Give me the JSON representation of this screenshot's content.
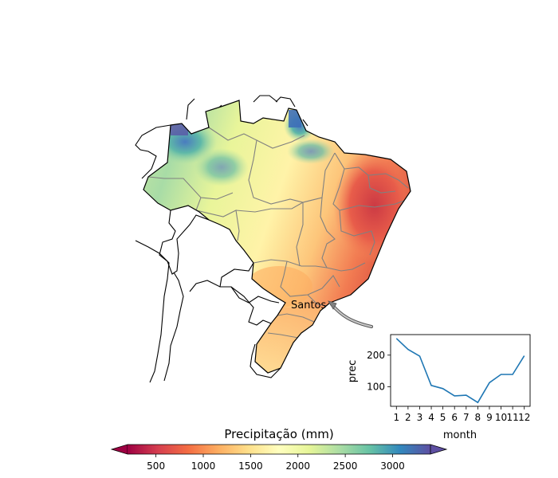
{
  "map": {
    "annotation": {
      "label": "Santos"
    }
  },
  "colorbar": {
    "title": "Precipitação (mm)",
    "ticks": [
      "500",
      "1000",
      "1500",
      "2000",
      "2500",
      "3000"
    ],
    "colormap": "Spectral",
    "colors": [
      "#9e0142",
      "#d53e4f",
      "#f46d43",
      "#fdae61",
      "#fee08b",
      "#ffffbf",
      "#e6f598",
      "#abdda4",
      "#66c2a5",
      "#3288bd",
      "#5e4fa2"
    ],
    "extend": "both"
  },
  "chart_data": {
    "type": "line",
    "x": [
      1,
      2,
      3,
      4,
      5,
      6,
      7,
      8,
      9,
      10,
      11,
      12
    ],
    "values": [
      253,
      218,
      197,
      104,
      94,
      71,
      73,
      50,
      113,
      139,
      139,
      198
    ],
    "xlabel": "month",
    "ylabel": "prec",
    "x_tick_labels": [
      "1",
      "2",
      "3",
      "4",
      "5",
      "6",
      "7",
      "8",
      "9",
      "10",
      "11",
      "12"
    ],
    "y_tick_labels": [
      "100",
      "200"
    ],
    "y_ticks": [
      100,
      200
    ],
    "ylim": [
      38,
      265
    ],
    "xlim": [
      0.5,
      12.5
    ],
    "line_color": "#1f77b4",
    "grid": false
  }
}
